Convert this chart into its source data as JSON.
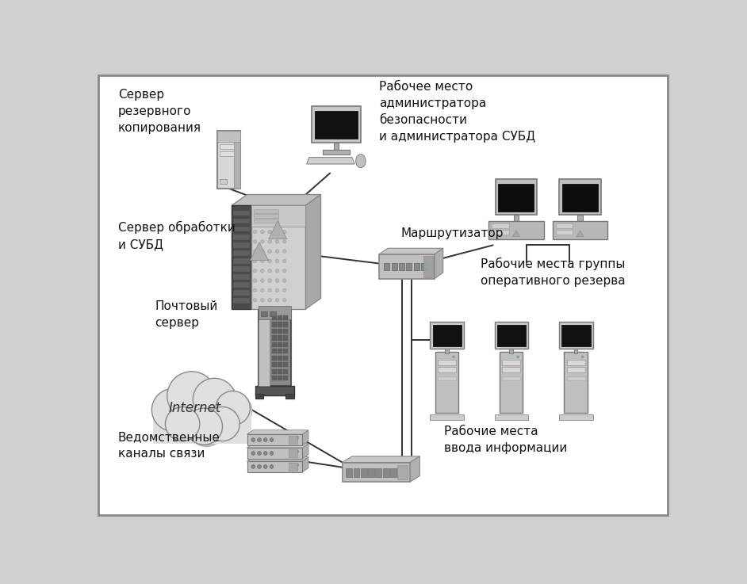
{
  "bg_color": "#ffffff",
  "border_color": "#aaaaaa",
  "line_color": "#333333",
  "labels": {
    "backup_server": "Сервер\nрезервного\nкопирования",
    "admin_workstation": "Рабочее место\nадминистратора\nбезопасности\nи администратора СУБД",
    "main_server": "Сервер обработки\nи СУБД",
    "router": "Маршрутизатор",
    "reserve_workstations": "Рабочие места группы\nоперативного резерва",
    "mail_server": "Почтовый\nсервер",
    "internet": "Internet",
    "dept_channels": "Ведомственные\nканалы связи",
    "input_workstations": "Рабочие места\nввода информации"
  }
}
